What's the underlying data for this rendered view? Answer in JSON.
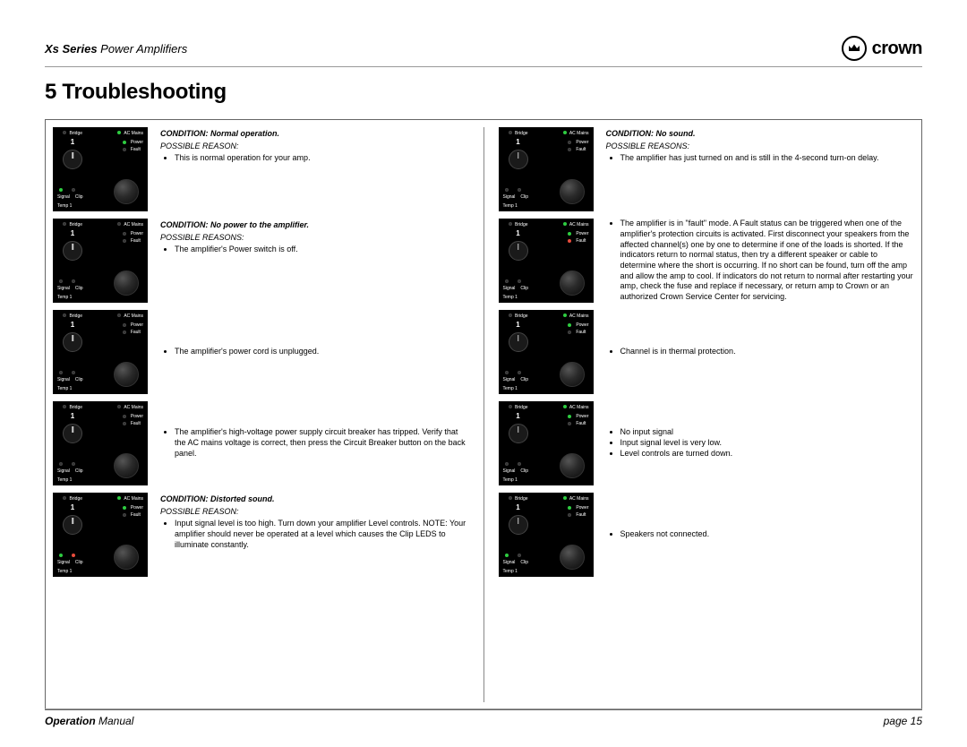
{
  "header": {
    "series_bold": "Xs Series",
    "series_rest": "Power Amplifiers",
    "brand": "crown"
  },
  "section_title": "5 Troubleshooting",
  "panel_labels": {
    "bridge": "Bridge",
    "ac_mains": "AC Mains",
    "power": "Power",
    "fault": "Fault",
    "signal": "Signal",
    "clip": "Clip",
    "temp": "Temp 1",
    "one": "1"
  },
  "left_col": [
    {
      "condition": "CONDITION: Normal operation.",
      "possible": "POSSIBLE REASON:",
      "leds": {
        "ac": true,
        "power": true,
        "fault": false,
        "signal": true,
        "clip": false
      },
      "reasons": [
        "This is normal operation for your amp."
      ]
    },
    {
      "condition": "CONDITION: No power to the amplifier.",
      "possible": "POSSIBLE REASONS:",
      "leds": {
        "ac": false,
        "power": false,
        "fault": false,
        "signal": false,
        "clip": false
      },
      "reasons": [
        "The amplifier's Power switch is off."
      ]
    },
    {
      "condition": "",
      "possible": "",
      "leds": {
        "ac": false,
        "power": false,
        "fault": false,
        "signal": false,
        "clip": false
      },
      "reasons": [
        "The amplifier's power cord is unplugged."
      ]
    },
    {
      "condition": "",
      "possible": "",
      "leds": {
        "ac": false,
        "power": false,
        "fault": false,
        "signal": false,
        "clip": false
      },
      "reasons": [
        "The amplifier's high-voltage power supply circuit breaker has tripped. Verify that the AC mains voltage is correct, then press the Circuit Breaker button on the back panel."
      ]
    },
    {
      "condition": "CONDITION: Distorted sound.",
      "possible": "POSSIBLE REASON:",
      "leds": {
        "ac": true,
        "power": true,
        "fault": false,
        "signal": true,
        "clip": true
      },
      "reasons": [
        "Input signal level is too high. Turn down your amplifier Level controls. NOTE: Your amplifier should never be operated at a level which causes the Clip LEDS to illuminate constantly."
      ]
    }
  ],
  "right_col": [
    {
      "condition": "CONDITION: No sound.",
      "possible": "POSSIBLE REASONS:",
      "leds": {
        "ac": true,
        "power": false,
        "fault": false,
        "signal": false,
        "clip": false
      },
      "reasons": [
        "The amplifier has just turned on and is still in the 4-second turn-on delay."
      ]
    },
    {
      "condition": "",
      "possible": "",
      "leds": {
        "ac": true,
        "power": true,
        "fault": true,
        "signal": false,
        "clip": false
      },
      "reasons": [
        "The amplifier is in \"fault\" mode. A Fault status can be triggered when one of the amplifier's protection circuits is activated. First disconnect your speakers from the affected channel(s) one by one to determine if one of the loads is shorted. If the indicators return to normal status, then try a different speaker or cable to determine where the short is occurring. If no short can be found, turn off the amp and allow the amp to cool. If indicators do not return to normal after restarting your amp, check the fuse and replace if necessary, or return amp to Crown or an authorized Crown Service Center for servicing."
      ]
    },
    {
      "condition": "",
      "possible": "",
      "leds": {
        "ac": true,
        "power": true,
        "fault": false,
        "signal": false,
        "clip": false
      },
      "reasons": [
        "Channel is in thermal protection."
      ]
    },
    {
      "condition": "",
      "possible": "",
      "leds": {
        "ac": true,
        "power": true,
        "fault": false,
        "signal": false,
        "clip": false
      },
      "reasons": [
        "No input signal",
        "Input signal level is very low.",
        "Level controls are turned down."
      ]
    },
    {
      "condition": "",
      "possible": "",
      "leds": {
        "ac": true,
        "power": true,
        "fault": false,
        "signal": true,
        "clip": false
      },
      "reasons": [
        "Speakers not connected."
      ]
    }
  ],
  "footer": {
    "manual_bold": "Operation",
    "manual_rest": "Manual",
    "page_label": "page",
    "page_num": "15"
  },
  "colors": {
    "led_green": "#2ecc40",
    "led_red": "#e74c3c",
    "led_off": "#333333",
    "panel_bg": "#000000",
    "border": "#666666"
  }
}
